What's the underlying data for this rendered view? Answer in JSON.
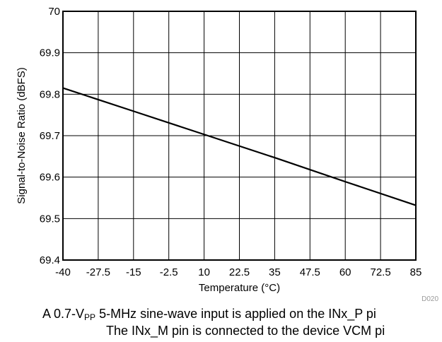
{
  "chart_data": {
    "type": "line",
    "xlabel": "Temperature (°C)",
    "ylabel": "Signal-to-Noise Ratio (dBFS)",
    "xlim": [
      -40,
      85
    ],
    "ylim": [
      69.4,
      70
    ],
    "x_ticks": [
      "-40",
      "-27.5",
      "-15",
      "-2.5",
      "10",
      "22.5",
      "35",
      "47.5",
      "60",
      "72.5",
      "85"
    ],
    "y_ticks": [
      "69.4",
      "69.5",
      "69.6",
      "69.7",
      "69.8",
      "69.9",
      "70"
    ],
    "grid": true,
    "series": [
      {
        "x": [
          -40,
          -15,
          10,
          35,
          60,
          85
        ],
        "y": [
          69.815,
          69.759,
          69.703,
          69.647,
          69.589,
          69.532
        ]
      }
    ],
    "tag": "D020"
  },
  "caption": {
    "line1_pre": "A 0.7-V",
    "line1_sub": "PP",
    "line1_post": " 5-MHz sine-wave input is applied on the INx_P pi",
    "line2": "The INx_M pin is connected to the device VCM pi"
  }
}
